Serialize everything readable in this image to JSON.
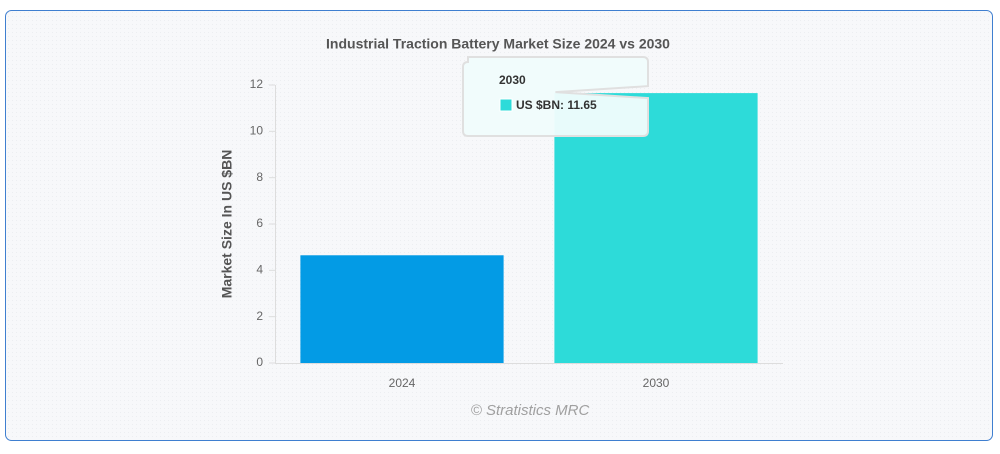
{
  "chart_data": {
    "type": "bar",
    "title": "Industrial Traction Battery Market Size 2024 vs 2030",
    "y_label": "Market Size In US $BN",
    "credit": "© Stratistics MRC",
    "categories": [
      "2024",
      "2030"
    ],
    "series": [
      {
        "name": "US $BN",
        "colors": [
          "#039be5",
          "#2ddbd9"
        ],
        "values": [
          4.65,
          11.65
        ]
      }
    ],
    "ylim": [
      0,
      12
    ],
    "yticks": [
      0,
      2,
      4,
      6,
      8,
      10,
      12
    ],
    "tooltip_category": 1
  }
}
